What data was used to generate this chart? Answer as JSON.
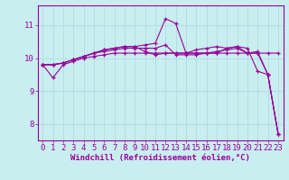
{
  "xlabel": "Windchill (Refroidissement éolien,°C)",
  "background_color": "#c8eef0",
  "line_color": "#990099",
  "grid_color": "#b0dde0",
  "xlim": [
    -0.5,
    23.5
  ],
  "ylim": [
    7.5,
    11.6
  ],
  "yticks": [
    8,
    9,
    10,
    11
  ],
  "xticks": [
    0,
    1,
    2,
    3,
    4,
    5,
    6,
    7,
    8,
    9,
    10,
    11,
    12,
    13,
    14,
    15,
    16,
    17,
    18,
    19,
    20,
    21,
    22,
    23
  ],
  "lines": [
    [
      9.8,
      9.4,
      9.8,
      9.9,
      10.0,
      10.05,
      10.1,
      10.15,
      10.15,
      10.15,
      10.15,
      10.15,
      10.15,
      10.15,
      10.15,
      10.15,
      10.15,
      10.15,
      10.15,
      10.15,
      10.15,
      10.15,
      10.15,
      10.15
    ],
    [
      9.8,
      9.8,
      9.85,
      9.95,
      10.05,
      10.15,
      10.25,
      10.3,
      10.35,
      10.35,
      10.4,
      10.45,
      11.2,
      11.05,
      10.15,
      10.25,
      10.3,
      10.35,
      10.3,
      10.35,
      10.3,
      9.6,
      9.5,
      7.7
    ],
    [
      9.8,
      9.8,
      9.85,
      9.95,
      10.05,
      10.15,
      10.25,
      10.3,
      10.35,
      10.35,
      10.2,
      10.1,
      10.15,
      10.15,
      10.15,
      10.15,
      10.15,
      10.15,
      10.3,
      10.35,
      10.15,
      10.2,
      9.5,
      7.7
    ],
    [
      9.8,
      9.8,
      9.85,
      9.95,
      10.05,
      10.15,
      10.2,
      10.25,
      10.3,
      10.3,
      10.3,
      10.3,
      10.4,
      10.1,
      10.1,
      10.1,
      10.15,
      10.2,
      10.25,
      10.3,
      10.15,
      10.15,
      9.5,
      7.7
    ]
  ],
  "xlabel_fontsize": 6.5,
  "tick_fontsize": 6.5,
  "ylabel_fontsize": 7
}
